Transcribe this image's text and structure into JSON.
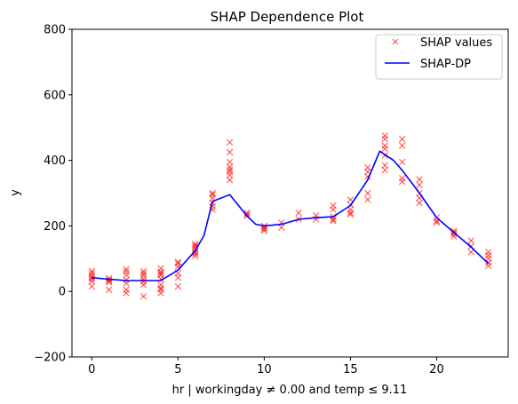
{
  "chart_data": {
    "type": "scatter",
    "title": "SHAP Dependence Plot",
    "xlabel": "hr | workingday ≠ 0.00 and temp ≤ 9.11",
    "ylabel": "y",
    "xlim": [
      -1.15,
      24.15
    ],
    "ylim": [
      -200,
      800
    ],
    "xticks": [
      0,
      5,
      10,
      15,
      20
    ],
    "yticks": [
      -200,
      0,
      200,
      400,
      600,
      800
    ],
    "grid": false,
    "legend_position": "top-right",
    "colors": {
      "scatter": "#ff0000",
      "line": "#0000ff"
    },
    "series": [
      {
        "name": "SHAP values",
        "kind": "scatter",
        "marker": "x",
        "points": [
          [
            0,
            62
          ],
          [
            0,
            55
          ],
          [
            0,
            48
          ],
          [
            0,
            42
          ],
          [
            0,
            38
          ],
          [
            0,
            30
          ],
          [
            0,
            15
          ],
          [
            1,
            40
          ],
          [
            1,
            36
          ],
          [
            1,
            32
          ],
          [
            1,
            28
          ],
          [
            1,
            5
          ],
          [
            2,
            68
          ],
          [
            2,
            60
          ],
          [
            2,
            50
          ],
          [
            2,
            35
          ],
          [
            2,
            25
          ],
          [
            2,
            5
          ],
          [
            2,
            -5
          ],
          [
            3,
            62
          ],
          [
            3,
            55
          ],
          [
            3,
            48
          ],
          [
            3,
            38
          ],
          [
            3,
            30
          ],
          [
            3,
            20
          ],
          [
            3,
            -15
          ],
          [
            4,
            70
          ],
          [
            4,
            60
          ],
          [
            4,
            55
          ],
          [
            4,
            50
          ],
          [
            4,
            38
          ],
          [
            4,
            20
          ],
          [
            4,
            10
          ],
          [
            4,
            5
          ],
          [
            4,
            -5
          ],
          [
            5,
            90
          ],
          [
            5,
            85
          ],
          [
            5,
            75
          ],
          [
            5,
            55
          ],
          [
            5,
            42
          ],
          [
            5,
            15
          ],
          [
            6,
            145
          ],
          [
            6,
            140
          ],
          [
            6,
            135
          ],
          [
            6,
            128
          ],
          [
            6,
            120
          ],
          [
            6,
            115
          ],
          [
            6,
            108
          ],
          [
            7,
            300
          ],
          [
            7,
            295
          ],
          [
            7,
            285
          ],
          [
            7,
            270
          ],
          [
            7,
            260
          ],
          [
            7,
            250
          ],
          [
            8,
            455
          ],
          [
            8,
            425
          ],
          [
            8,
            395
          ],
          [
            8,
            380
          ],
          [
            8,
            372
          ],
          [
            8,
            365
          ],
          [
            8,
            355
          ],
          [
            8,
            340
          ],
          [
            9,
            240
          ],
          [
            9,
            235
          ],
          [
            9,
            230
          ],
          [
            10,
            200
          ],
          [
            10,
            195
          ],
          [
            10,
            190
          ],
          [
            10,
            185
          ],
          [
            11,
            210
          ],
          [
            11,
            195
          ],
          [
            12,
            240
          ],
          [
            12,
            220
          ],
          [
            13,
            232
          ],
          [
            13,
            220
          ],
          [
            14,
            262
          ],
          [
            14,
            250
          ],
          [
            14,
            228
          ],
          [
            14,
            220
          ],
          [
            14,
            215
          ],
          [
            15,
            280
          ],
          [
            15,
            265
          ],
          [
            15,
            250
          ],
          [
            15,
            240
          ],
          [
            15,
            235
          ],
          [
            16,
            378
          ],
          [
            16,
            365
          ],
          [
            16,
            350
          ],
          [
            16,
            300
          ],
          [
            16,
            280
          ],
          [
            17,
            475
          ],
          [
            17,
            465
          ],
          [
            17,
            445
          ],
          [
            17,
            435
          ],
          [
            17,
            415
          ],
          [
            17,
            385
          ],
          [
            17,
            370
          ],
          [
            18,
            465
          ],
          [
            18,
            445
          ],
          [
            18,
            395
          ],
          [
            18,
            345
          ],
          [
            18,
            335
          ],
          [
            19,
            342
          ],
          [
            19,
            325
          ],
          [
            19,
            300
          ],
          [
            19,
            285
          ],
          [
            19,
            270
          ],
          [
            20,
            225
          ],
          [
            20,
            215
          ],
          [
            20,
            210
          ],
          [
            21,
            185
          ],
          [
            21,
            180
          ],
          [
            21,
            175
          ],
          [
            21,
            168
          ],
          [
            22,
            155
          ],
          [
            22,
            138
          ],
          [
            22,
            120
          ],
          [
            23,
            120
          ],
          [
            23,
            110
          ],
          [
            23,
            100
          ],
          [
            23,
            88
          ],
          [
            23,
            78
          ]
        ]
      },
      {
        "name": "SHAP-DP",
        "kind": "line",
        "points": [
          [
            0,
            42
          ],
          [
            1,
            37
          ],
          [
            2,
            33
          ],
          [
            3,
            33
          ],
          [
            4,
            33
          ],
          [
            5,
            65
          ],
          [
            6,
            125
          ],
          [
            6.5,
            170
          ],
          [
            7,
            275
          ],
          [
            8,
            295
          ],
          [
            9,
            230
          ],
          [
            9.5,
            205
          ],
          [
            10,
            200
          ],
          [
            11,
            205
          ],
          [
            12,
            220
          ],
          [
            13,
            225
          ],
          [
            14,
            228
          ],
          [
            15,
            262
          ],
          [
            16,
            340
          ],
          [
            16.7,
            428
          ],
          [
            17.5,
            400
          ],
          [
            18,
            370
          ],
          [
            19,
            300
          ],
          [
            20,
            225
          ],
          [
            21,
            180
          ],
          [
            22,
            135
          ],
          [
            23,
            85
          ]
        ]
      }
    ]
  }
}
